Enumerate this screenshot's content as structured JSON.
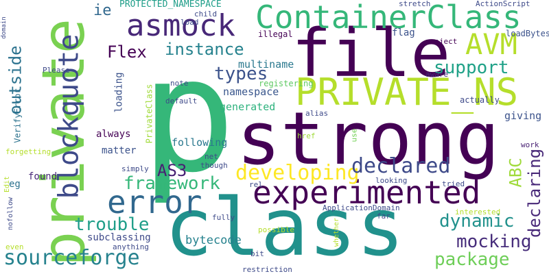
{
  "words": [
    {
      "text": "p",
      "color": "#35b779"
    },
    {
      "text": "strong",
      "color": "#440154"
    },
    {
      "text": "class",
      "color": "#21918c"
    },
    {
      "text": "file",
      "color": "#440154"
    },
    {
      "text": "private",
      "color": "#7ad151"
    },
    {
      "text": "PRIVATE_NS",
      "color": "#b5de2b"
    },
    {
      "text": "ContainerClass",
      "color": "#35b779"
    },
    {
      "text": "experimented",
      "color": "#440154"
    },
    {
      "text": "blockquote",
      "color": "#3e4a89"
    },
    {
      "text": "error",
      "color": "#31688e"
    },
    {
      "text": "asmock",
      "color": "#482878"
    },
    {
      "text": "AVM",
      "color": "#b5de2b"
    },
    {
      "text": "sourceforge",
      "color": "#26828e"
    },
    {
      "text": "developing",
      "color": "#fde725"
    },
    {
      "text": "declared",
      "color": "#3e4a89"
    },
    {
      "text": "framework",
      "color": "#35b779"
    },
    {
      "text": "trouble",
      "color": "#1f9e89"
    },
    {
      "text": "dynamic",
      "color": "#21918c"
    },
    {
      "text": "package",
      "color": "#6ece58"
    },
    {
      "text": "mocking",
      "color": "#472d7b"
    },
    {
      "text": "support",
      "color": "#1fa187"
    },
    {
      "text": "instance",
      "color": "#26828e"
    },
    {
      "text": "types",
      "color": "#3b528b"
    },
    {
      "text": "outside",
      "color": "#2c728e"
    },
    {
      "text": "declaring",
      "color": "#482878"
    },
    {
      "text": "ABC",
      "color": "#9fda3a"
    },
    {
      "text": "Flex",
      "color": "#440154"
    },
    {
      "text": "AS3",
      "color": "#482173"
    },
    {
      "text": "ie",
      "color": "#31688e"
    },
    {
      "text": "bytecode",
      "color": "#26828e"
    },
    {
      "text": "generated",
      "color": "#2db27d"
    },
    {
      "text": "namespace",
      "color": "#39568c"
    },
    {
      "text": "multiname",
      "color": "#2a788e"
    },
    {
      "text": "following",
      "color": "#2a788e"
    },
    {
      "text": "subclassing",
      "color": "#3e4a89"
    },
    {
      "text": "giving",
      "color": "#3b528b"
    },
    {
      "text": "always",
      "color": "#440154"
    },
    {
      "text": "matter",
      "color": "#3b528b"
    },
    {
      "text": "loading",
      "color": "#3b528b"
    },
    {
      "text": "PROTECTED_NAMESPACE",
      "color": "#1f9e89"
    },
    {
      "text": "flag",
      "color": "#3b528b"
    },
    {
      "text": "eg",
      "color": "#2c728e"
    },
    {
      "text": "found",
      "color": "#482878"
    },
    {
      "text": "registering",
      "color": "#5ec962"
    },
    {
      "text": "actually",
      "color": "#3e4a89"
    },
    {
      "text": "VerifyError",
      "color": "#2c728e"
    },
    {
      "text": "PrivateClass",
      "color": "#a0da39"
    },
    {
      "text": "loadBytes",
      "color": "#3b528b"
    },
    {
      "text": "ActionScript",
      "color": "#3e4a89"
    },
    {
      "text": "stretch",
      "color": "#3e4a89"
    },
    {
      "text": "child",
      "color": "#3e4a89"
    },
    {
      "text": "load",
      "color": "#3e4a89"
    },
    {
      "text": "illegal",
      "color": "#440154"
    },
    {
      "text": "project",
      "color": "#440154"
    },
    {
      "text": "Please",
      "color": "#3e4a89"
    },
    {
      "text": "aware",
      "color": "#472d7b"
    },
    {
      "text": "note",
      "color": "#3e4a89"
    },
    {
      "text": "default",
      "color": "#3e4a89"
    },
    {
      "text": "alias",
      "color": "#3e4a89"
    },
    {
      "text": "href",
      "color": "#a0da39"
    },
    {
      "text": "use",
      "color": "#73d056"
    },
    {
      "text": "work",
      "color": "#482173"
    },
    {
      "text": "simply",
      "color": "#3e4a89"
    },
    {
      "text": "though",
      "color": "#3e4a89"
    },
    {
      "text": "net",
      "color": "#3e4a89"
    },
    {
      "text": "rel",
      "color": "#3e4a89"
    },
    {
      "text": "looking",
      "color": "#3e4a89"
    },
    {
      "text": "tried",
      "color": "#3e4a89"
    },
    {
      "text": "forgetting",
      "color": "#b5de2b"
    },
    {
      "text": "Edit",
      "color": "#b5de2b"
    },
    {
      "text": "nofollow",
      "color": "#3e4a89"
    },
    {
      "text": "ApplicationDomain",
      "color": "#3e4a89"
    },
    {
      "text": "interested",
      "color": "#b5de2b"
    },
    {
      "text": "fully",
      "color": "#3e4a89"
    },
    {
      "text": "far",
      "color": "#3e4a89"
    },
    {
      "text": "possible",
      "color": "#b5de2b"
    },
    {
      "text": "whether",
      "color": "#b5de2b"
    },
    {
      "text": "anything",
      "color": "#3e4a89"
    },
    {
      "text": "bit",
      "color": "#3e4a89"
    },
    {
      "text": "restriction",
      "color": "#3e4a89"
    },
    {
      "text": "even",
      "color": "#b5de2b"
    },
    {
      "text": "domain",
      "color": "#3e4a89"
    }
  ]
}
